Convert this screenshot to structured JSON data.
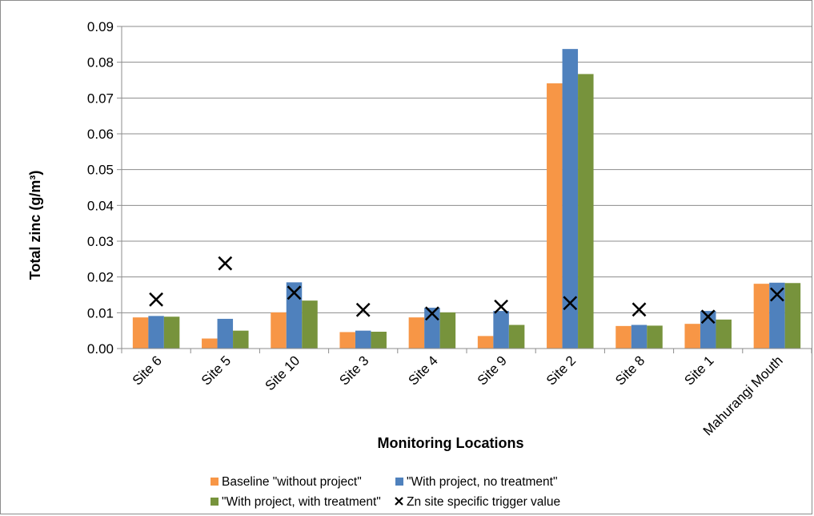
{
  "chart_data": {
    "type": "bar",
    "categories": [
      "Site 6",
      "Site 5",
      "Site 10",
      "Site 3",
      "Site 4",
      "Site 9",
      "Site 2",
      "Site 8",
      "Site 1",
      "Mahurangi Mouth"
    ],
    "series": [
      {
        "name": "Baseline \"without project\"",
        "color": "#f79646",
        "values": [
          0.0087,
          0.0028,
          0.0101,
          0.0046,
          0.0087,
          0.0035,
          0.0741,
          0.0063,
          0.0069,
          0.0181
        ]
      },
      {
        "name": "\"With project, no treatment\"",
        "color": "#4f81bd",
        "values": [
          0.0091,
          0.0083,
          0.0185,
          0.005,
          0.0114,
          0.0105,
          0.0837,
          0.0066,
          0.0105,
          0.0184
        ]
      },
      {
        "name": "\"With project, with treatment\"",
        "color": "#77933c",
        "values": [
          0.0089,
          0.005,
          0.0134,
          0.0047,
          0.0101,
          0.0066,
          0.0767,
          0.0064,
          0.0081,
          0.0183
        ]
      }
    ],
    "markers": {
      "name": "Zn site specific trigger value",
      "symbol": "x",
      "color": "#000000",
      "values": [
        0.0137,
        0.0238,
        0.0156,
        0.0108,
        0.0098,
        0.0117,
        0.0127,
        0.0109,
        0.0089,
        0.0151
      ]
    },
    "xlabel": "Monitoring Locations",
    "ylabel": "Total zinc (g/m³)",
    "ylim": [
      0,
      0.09
    ],
    "yticks": [
      "0.00",
      "0.01",
      "0.02",
      "0.03",
      "0.04",
      "0.05",
      "0.06",
      "0.07",
      "0.08",
      "0.09"
    ],
    "grid": true,
    "legend_position": "bottom"
  }
}
